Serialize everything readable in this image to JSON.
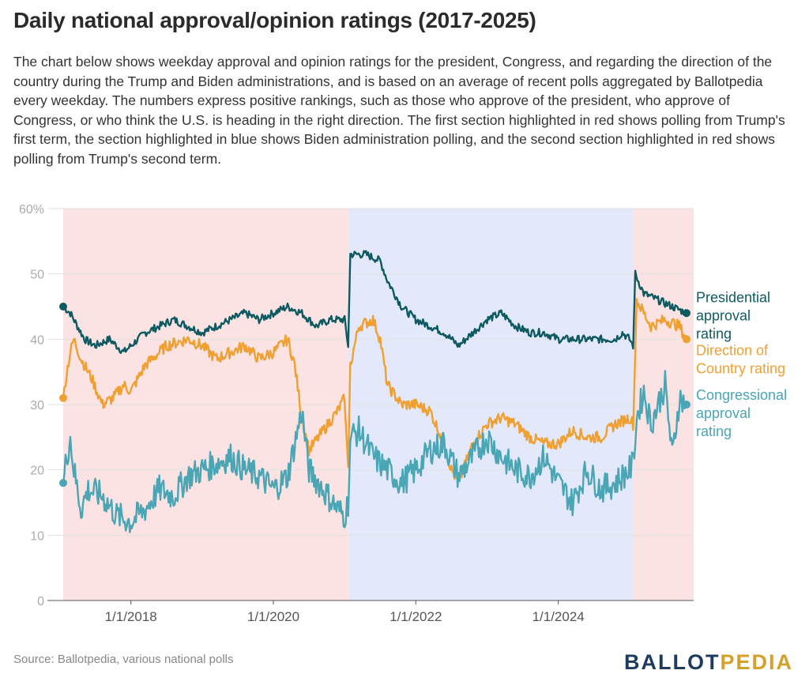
{
  "header": {
    "title": "Daily national approval/opinion ratings (2017-2025)",
    "description": "The chart below shows weekday approval and opinion ratings for the president, Congress, and regarding the direction of the country during the Trump and Biden administrations, and is based on an average of recent polls aggregated by Ballotpedia every weekday. The numbers express positive rankings, such as those who approve of the president, who approve of Congress, or who think the U.S. is heading in the right direction. The first section highlighted in red shows polling from Trump's first term, the section highlighted in blue shows Biden administration polling, and the second section highlighted in red shows polling from Trump's second term."
  },
  "footer": {
    "source": "Source: Ballotpedia, various national polls",
    "logo_part1": "BALLOT",
    "logo_part2": "PEDIA"
  },
  "chart_data": {
    "type": "line",
    "ylim": [
      0,
      60
    ],
    "yticks": [
      "0",
      "10",
      "20",
      "30",
      "40",
      "50",
      "60%"
    ],
    "xticks": [
      "1/1/2018",
      "1/1/2020",
      "1/1/2022",
      "1/1/2024"
    ],
    "xrange": [
      2017.05,
      2025.9
    ],
    "grid": true,
    "shaded_periods": [
      {
        "label": "Trump first term",
        "start": 2017.05,
        "end": 2021.05,
        "color": "#fbe3e3"
      },
      {
        "label": "Biden administration",
        "start": 2021.05,
        "end": 2025.05,
        "color": "#e3e9fb"
      },
      {
        "label": "Trump second term",
        "start": 2025.05,
        "end": 2025.9,
        "color": "#fbe3e3"
      }
    ],
    "series": [
      {
        "name": "Presidential approval rating",
        "color": "#0e5a63",
        "points": [
          [
            2017.05,
            45
          ],
          [
            2017.15,
            44
          ],
          [
            2017.25,
            42
          ],
          [
            2017.35,
            40
          ],
          [
            2017.5,
            39
          ],
          [
            2017.7,
            40
          ],
          [
            2017.9,
            38
          ],
          [
            2018.0,
            39
          ],
          [
            2018.2,
            41
          ],
          [
            2018.4,
            42
          ],
          [
            2018.6,
            43
          ],
          [
            2018.8,
            42
          ],
          [
            2019.0,
            41
          ],
          [
            2019.2,
            42
          ],
          [
            2019.4,
            43
          ],
          [
            2019.6,
            44
          ],
          [
            2019.8,
            43
          ],
          [
            2020.0,
            44
          ],
          [
            2020.2,
            45
          ],
          [
            2020.4,
            44
          ],
          [
            2020.6,
            42
          ],
          [
            2020.8,
            43
          ],
          [
            2021.0,
            43
          ],
          [
            2021.05,
            39
          ],
          [
            2021.08,
            53
          ],
          [
            2021.3,
            53
          ],
          [
            2021.5,
            52
          ],
          [
            2021.6,
            49
          ],
          [
            2021.8,
            45
          ],
          [
            2022.0,
            43
          ],
          [
            2022.2,
            42
          ],
          [
            2022.4,
            41
          ],
          [
            2022.6,
            39
          ],
          [
            2022.8,
            41
          ],
          [
            2023.0,
            43
          ],
          [
            2023.2,
            44
          ],
          [
            2023.4,
            42
          ],
          [
            2023.6,
            41
          ],
          [
            2023.8,
            41
          ],
          [
            2024.0,
            40
          ],
          [
            2024.2,
            40
          ],
          [
            2024.4,
            40
          ],
          [
            2024.6,
            40
          ],
          [
            2024.8,
            40
          ],
          [
            2024.9,
            41
          ],
          [
            2025.0,
            40
          ],
          [
            2025.05,
            39
          ],
          [
            2025.08,
            50
          ],
          [
            2025.2,
            47
          ],
          [
            2025.4,
            46
          ],
          [
            2025.6,
            45
          ],
          [
            2025.8,
            44
          ]
        ]
      },
      {
        "name": "Direction of Country rating",
        "color": "#f0a030",
        "points": [
          [
            2017.05,
            31
          ],
          [
            2017.1,
            35
          ],
          [
            2017.15,
            38
          ],
          [
            2017.2,
            40
          ],
          [
            2017.3,
            37
          ],
          [
            2017.45,
            34
          ],
          [
            2017.6,
            30
          ],
          [
            2017.75,
            31
          ],
          [
            2017.9,
            33
          ],
          [
            2018.0,
            32
          ],
          [
            2018.1,
            34
          ],
          [
            2018.2,
            36
          ],
          [
            2018.3,
            37
          ],
          [
            2018.5,
            39
          ],
          [
            2018.8,
            40
          ],
          [
            2019.0,
            39
          ],
          [
            2019.2,
            37
          ],
          [
            2019.4,
            38
          ],
          [
            2019.6,
            39
          ],
          [
            2019.8,
            37
          ],
          [
            2020.0,
            38
          ],
          [
            2020.2,
            40
          ],
          [
            2020.3,
            36
          ],
          [
            2020.4,
            28
          ],
          [
            2020.5,
            23
          ],
          [
            2020.7,
            26
          ],
          [
            2020.9,
            29
          ],
          [
            2021.0,
            31
          ],
          [
            2021.05,
            20
          ],
          [
            2021.08,
            36
          ],
          [
            2021.2,
            42
          ],
          [
            2021.4,
            43
          ],
          [
            2021.5,
            40
          ],
          [
            2021.6,
            33
          ],
          [
            2021.8,
            30
          ],
          [
            2022.0,
            30
          ],
          [
            2022.2,
            29
          ],
          [
            2022.4,
            24
          ],
          [
            2022.5,
            20
          ],
          [
            2022.6,
            18
          ],
          [
            2022.8,
            24
          ],
          [
            2023.0,
            27
          ],
          [
            2023.2,
            28
          ],
          [
            2023.4,
            27
          ],
          [
            2023.6,
            25
          ],
          [
            2023.8,
            24
          ],
          [
            2024.0,
            24
          ],
          [
            2024.2,
            26
          ],
          [
            2024.4,
            25
          ],
          [
            2024.6,
            25
          ],
          [
            2024.8,
            27
          ],
          [
            2025.0,
            28
          ],
          [
            2025.05,
            27
          ],
          [
            2025.1,
            46
          ],
          [
            2025.3,
            42
          ],
          [
            2025.5,
            43
          ],
          [
            2025.7,
            42
          ],
          [
            2025.8,
            40
          ]
        ]
      },
      {
        "name": "Congressional approval rating",
        "color": "#4aa5b5",
        "points": [
          [
            2017.05,
            18
          ],
          [
            2017.1,
            22
          ],
          [
            2017.15,
            25
          ],
          [
            2017.2,
            20
          ],
          [
            2017.3,
            14
          ],
          [
            2017.4,
            17
          ],
          [
            2017.6,
            16
          ],
          [
            2017.8,
            13
          ],
          [
            2018.0,
            12
          ],
          [
            2018.2,
            14
          ],
          [
            2018.4,
            17
          ],
          [
            2018.6,
            16
          ],
          [
            2018.8,
            19
          ],
          [
            2019.0,
            20
          ],
          [
            2019.2,
            21
          ],
          [
            2019.4,
            22
          ],
          [
            2019.6,
            20
          ],
          [
            2019.8,
            19
          ],
          [
            2020.0,
            17
          ],
          [
            2020.2,
            19
          ],
          [
            2020.4,
            29
          ],
          [
            2020.5,
            20
          ],
          [
            2020.7,
            17
          ],
          [
            2020.9,
            14
          ],
          [
            2021.0,
            13
          ],
          [
            2021.05,
            15
          ],
          [
            2021.08,
            25
          ],
          [
            2021.2,
            26
          ],
          [
            2021.4,
            22
          ],
          [
            2021.6,
            20
          ],
          [
            2021.8,
            18
          ],
          [
            2022.0,
            20
          ],
          [
            2022.2,
            23
          ],
          [
            2022.4,
            24
          ],
          [
            2022.6,
            19
          ],
          [
            2022.8,
            22
          ],
          [
            2023.0,
            25
          ],
          [
            2023.2,
            22
          ],
          [
            2023.4,
            20
          ],
          [
            2023.6,
            19
          ],
          [
            2023.8,
            22
          ],
          [
            2024.0,
            18
          ],
          [
            2024.2,
            15
          ],
          [
            2024.4,
            20
          ],
          [
            2024.6,
            17
          ],
          [
            2024.8,
            18
          ],
          [
            2025.0,
            20
          ],
          [
            2025.05,
            21
          ],
          [
            2025.1,
            28
          ],
          [
            2025.2,
            32
          ],
          [
            2025.3,
            27
          ],
          [
            2025.4,
            30
          ],
          [
            2025.5,
            33
          ],
          [
            2025.6,
            22
          ],
          [
            2025.7,
            31
          ],
          [
            2025.8,
            30
          ]
        ]
      }
    ],
    "annotations": [
      {
        "series": 0,
        "lines": [
          "Presidential",
          "approval",
          "rating"
        ]
      },
      {
        "series": 1,
        "lines": [
          "Direction of",
          "Country rating"
        ]
      },
      {
        "series": 2,
        "lines": [
          "Congressional",
          "approval",
          "rating"
        ]
      }
    ]
  }
}
